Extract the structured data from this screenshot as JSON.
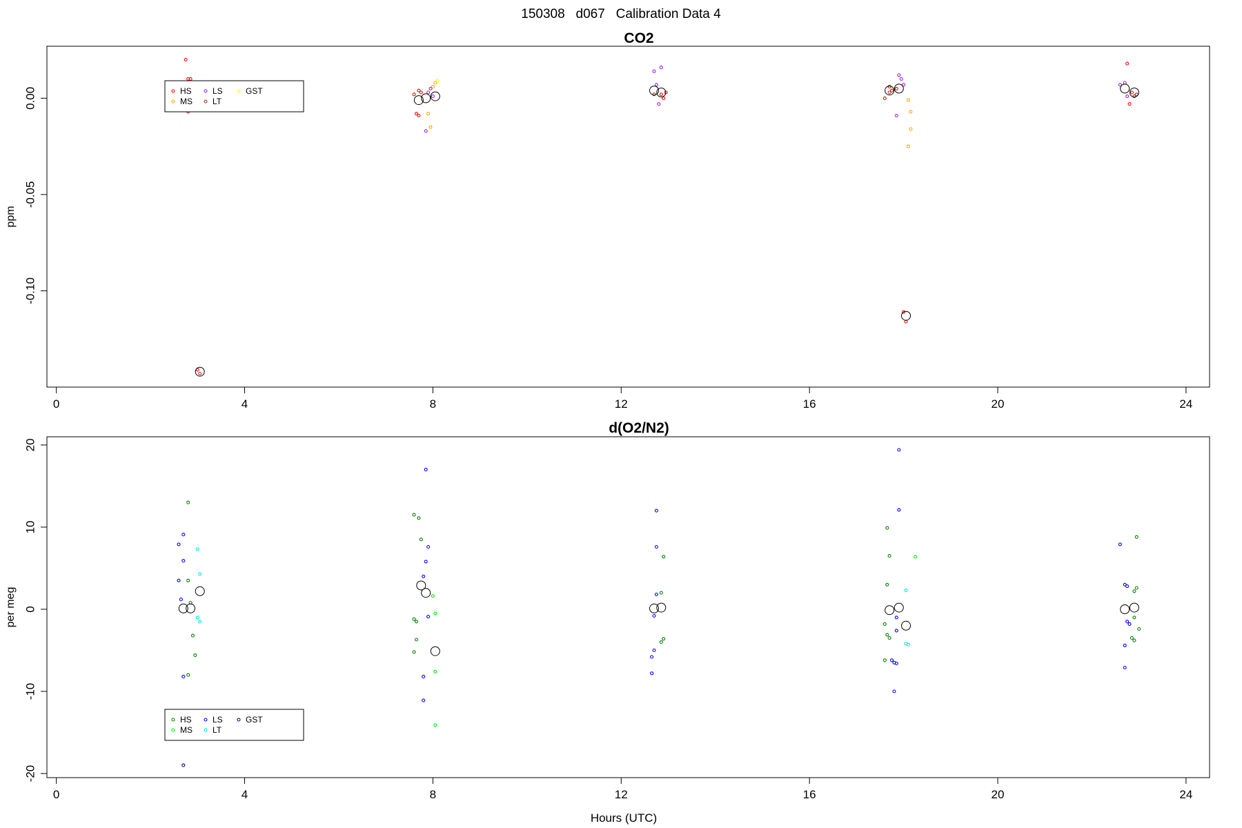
{
  "figure_title": "150308   d067   Calibration Data 4",
  "chart_data": [
    {
      "type": "scatter",
      "title": "CO2",
      "ylabel": "ppm",
      "xlabel": "",
      "xlim": [
        -0.2,
        24.5
      ],
      "ylim": [
        -0.15,
        0.027
      ],
      "x_ticks": [
        0,
        4,
        8,
        12,
        16,
        20,
        24
      ],
      "y_ticks": [
        0.0,
        -0.05,
        -0.1
      ],
      "y_tick_labels": [
        "0.00",
        "-0.05",
        "-0.10"
      ],
      "grid": false,
      "legend_position": "top-left",
      "legend": [
        {
          "name": "HS",
          "color": "#ff0000"
        },
        {
          "name": "MS",
          "color": "#ffa500"
        },
        {
          "name": "LS",
          "color": "#a020f0"
        },
        {
          "name": "LT",
          "color": "#b22222"
        },
        {
          "name": "GST",
          "color": "#ffff00"
        }
      ],
      "series": [
        {
          "name": "HS",
          "color": "#ff0000",
          "points": [
            [
              2.75,
              0.02
            ],
            [
              2.8,
              0.01
            ],
            [
              2.85,
              0.01
            ],
            [
              3.0,
              -0.141
            ],
            [
              7.6,
              0.002
            ],
            [
              7.65,
              -0.008
            ],
            [
              7.7,
              -0.009
            ],
            [
              7.75,
              0.003
            ],
            [
              12.85,
              0.002
            ],
            [
              12.9,
              0.0
            ],
            [
              12.95,
              0.003
            ],
            [
              17.6,
              0.0
            ],
            [
              17.7,
              0.006
            ],
            [
              17.75,
              0.004
            ],
            [
              17.85,
              0.005
            ],
            [
              18.0,
              -0.111
            ],
            [
              18.05,
              -0.116
            ],
            [
              22.75,
              0.018
            ],
            [
              22.8,
              -0.003
            ],
            [
              22.85,
              0.003
            ],
            [
              22.9,
              0.001
            ]
          ]
        },
        {
          "name": "MS",
          "color": "#ffa500",
          "points": [
            [
              7.9,
              -0.008
            ],
            [
              7.95,
              -0.015
            ],
            [
              8.0,
              0.006
            ],
            [
              8.05,
              0.008
            ],
            [
              18.1,
              -0.001
            ],
            [
              18.15,
              -0.007
            ],
            [
              18.15,
              -0.016
            ],
            [
              18.1,
              -0.025
            ]
          ]
        },
        {
          "name": "LS",
          "color": "#a020f0",
          "points": [
            [
              7.85,
              -0.017
            ],
            [
              7.9,
              0.003
            ],
            [
              7.95,
              0.005
            ],
            [
              8.0,
              0.001
            ],
            [
              12.7,
              0.014
            ],
            [
              12.75,
              0.007
            ],
            [
              12.8,
              -0.003
            ],
            [
              12.85,
              0.016
            ],
            [
              17.85,
              -0.009
            ],
            [
              17.9,
              0.012
            ],
            [
              17.95,
              0.01
            ],
            [
              18.0,
              0.007
            ],
            [
              22.6,
              0.007
            ],
            [
              22.7,
              0.008
            ],
            [
              22.75,
              0.001
            ]
          ]
        },
        {
          "name": "LT",
          "color": "#b22222",
          "points": [
            [
              2.8,
              -0.007
            ],
            [
              3.05,
              -0.143
            ],
            [
              7.7,
              0.004
            ],
            [
              12.7,
              0.002
            ],
            [
              17.7,
              0.003
            ],
            [
              22.95,
              0.002
            ]
          ]
        },
        {
          "name": "GST",
          "color": "#ffff00",
          "points": [
            [
              8.1,
              0.009
            ]
          ]
        },
        {
          "name": "mean",
          "color": "#000000",
          "large": true,
          "points": [
            [
              3.05,
              -0.142
            ],
            [
              7.7,
              -0.001
            ],
            [
              7.85,
              0.0
            ],
            [
              8.05,
              0.001
            ],
            [
              12.7,
              0.004
            ],
            [
              12.85,
              0.003
            ],
            [
              17.7,
              0.004
            ],
            [
              17.9,
              0.005
            ],
            [
              18.05,
              -0.113
            ],
            [
              22.7,
              0.005
            ],
            [
              22.9,
              0.003
            ]
          ]
        }
      ]
    },
    {
      "type": "scatter",
      "title": "d(O2/N2)",
      "ylabel": "per meg",
      "xlabel": "Hours (UTC)",
      "xlim": [
        -0.2,
        24.5
      ],
      "ylim": [
        -20.5,
        21
      ],
      "x_ticks": [
        0,
        4,
        8,
        12,
        16,
        20,
        24
      ],
      "y_ticks": [
        20,
        10,
        0,
        -10,
        -20
      ],
      "y_tick_labels": [
        "20",
        "10",
        "0",
        "-10",
        "-20"
      ],
      "grid": false,
      "legend_position": "bottom-left",
      "legend": [
        {
          "name": "HS",
          "color": "#008000"
        },
        {
          "name": "MS",
          "color": "#00ee00"
        },
        {
          "name": "LS",
          "color": "#0000ff"
        },
        {
          "name": "LT",
          "color": "#00e5ee"
        },
        {
          "name": "GST",
          "color": "#000080"
        }
      ],
      "series": [
        {
          "name": "HS",
          "color": "#008000",
          "points": [
            [
              2.8,
              13.0
            ],
            [
              2.8,
              3.5
            ],
            [
              2.85,
              0.8
            ],
            [
              2.8,
              -8.0
            ],
            [
              2.9,
              -3.2
            ],
            [
              2.95,
              -5.6
            ],
            [
              7.6,
              11.5
            ],
            [
              7.7,
              11.1
            ],
            [
              7.75,
              8.5
            ],
            [
              7.6,
              -1.2
            ],
            [
              7.65,
              -1.5
            ],
            [
              7.65,
              -3.7
            ],
            [
              7.6,
              -5.2
            ],
            [
              12.85,
              2.0
            ],
            [
              12.9,
              -3.6
            ],
            [
              12.85,
              -4.0
            ],
            [
              12.9,
              6.4
            ],
            [
              17.65,
              9.9
            ],
            [
              17.7,
              6.5
            ],
            [
              17.65,
              3.0
            ],
            [
              17.6,
              -1.8
            ],
            [
              17.65,
              -3.1
            ],
            [
              17.7,
              -3.5
            ],
            [
              17.6,
              -6.2
            ],
            [
              22.95,
              8.8
            ],
            [
              22.9,
              2.2
            ],
            [
              22.95,
              2.6
            ],
            [
              22.9,
              -1.0
            ],
            [
              22.85,
              -3.5
            ],
            [
              22.9,
              -3.8
            ],
            [
              23.0,
              -2.4
            ]
          ]
        },
        {
          "name": "MS",
          "color": "#00ee00",
          "points": [
            [
              8.0,
              1.6
            ],
            [
              8.05,
              -0.5
            ],
            [
              8.05,
              -7.6
            ],
            [
              8.05,
              -14.1
            ],
            [
              18.25,
              6.4
            ]
          ]
        },
        {
          "name": "LS",
          "color": "#0000ff",
          "points": [
            [
              2.6,
              7.9
            ],
            [
              2.7,
              9.1
            ],
            [
              2.7,
              5.9
            ],
            [
              2.6,
              3.5
            ],
            [
              2.65,
              1.2
            ],
            [
              2.7,
              -8.2
            ],
            [
              7.85,
              17.0
            ],
            [
              7.9,
              7.6
            ],
            [
              7.85,
              5.8
            ],
            [
              7.8,
              4.0
            ],
            [
              7.9,
              -0.9
            ],
            [
              7.8,
              -8.2
            ],
            [
              7.8,
              -11.1
            ],
            [
              12.75,
              12.0
            ],
            [
              12.75,
              7.6
            ],
            [
              12.75,
              1.8
            ],
            [
              12.7,
              -0.8
            ],
            [
              12.7,
              -5.0
            ],
            [
              12.65,
              -5.8
            ],
            [
              12.65,
              -7.8
            ],
            [
              17.9,
              19.4
            ],
            [
              17.9,
              12.1
            ],
            [
              17.85,
              -1.0
            ],
            [
              17.85,
              -2.6
            ],
            [
              17.8,
              -6.5
            ],
            [
              17.85,
              -6.6
            ],
            [
              17.75,
              -6.2
            ],
            [
              17.8,
              -10.0
            ],
            [
              22.6,
              7.9
            ],
            [
              22.7,
              3.0
            ],
            [
              22.75,
              2.8
            ],
            [
              22.75,
              -1.5
            ],
            [
              22.8,
              -1.8
            ],
            [
              22.7,
              -4.4
            ],
            [
              22.7,
              -7.1
            ]
          ]
        },
        {
          "name": "LT",
          "color": "#00e5ee",
          "points": [
            [
              3.0,
              7.3
            ],
            [
              3.05,
              4.3
            ],
            [
              3.0,
              -1.0
            ],
            [
              3.05,
              -1.5
            ],
            [
              18.05,
              2.3
            ],
            [
              18.05,
              -4.2
            ],
            [
              18.1,
              -4.3
            ]
          ]
        },
        {
          "name": "GST",
          "color": "#000080",
          "points": [
            [
              2.7,
              -19.0
            ]
          ]
        },
        {
          "name": "mean",
          "color": "#000000",
          "large": true,
          "points": [
            [
              2.7,
              0.1
            ],
            [
              2.85,
              0.1
            ],
            [
              3.05,
              2.2
            ],
            [
              7.75,
              2.9
            ],
            [
              7.85,
              2.0
            ],
            [
              8.05,
              -5.1
            ],
            [
              12.7,
              0.1
            ],
            [
              12.85,
              0.2
            ],
            [
              17.7,
              -0.1
            ],
            [
              17.9,
              0.2
            ],
            [
              18.05,
              -2.0
            ],
            [
              22.7,
              0.0
            ],
            [
              22.9,
              0.2
            ]
          ]
        }
      ]
    }
  ]
}
